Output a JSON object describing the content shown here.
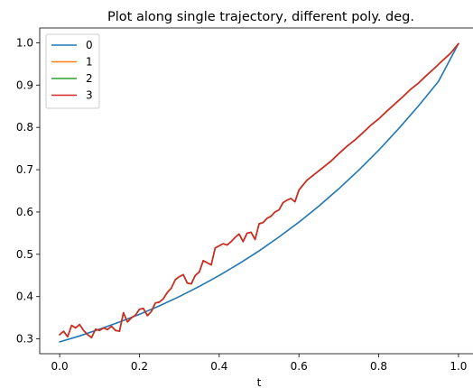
{
  "chart_data": {
    "type": "line",
    "title": "Plot along single trajectory, different poly. deg.",
    "xlabel": "t",
    "ylabel": "",
    "xlim": [
      -0.05,
      1.05
    ],
    "ylim": [
      0.265,
      1.035
    ],
    "xticks": [
      "0.0",
      "0.2",
      "0.4",
      "0.6",
      "0.8",
      "1.0"
    ],
    "yticks": [
      "0.3",
      "0.4",
      "0.5",
      "0.6",
      "0.7",
      "0.8",
      "0.9",
      "1.0"
    ],
    "grid": false,
    "legend_position": "upper-left",
    "series": [
      {
        "name": "0",
        "color": "#1f77b4",
        "x": [
          0.0,
          0.05,
          0.1,
          0.15,
          0.2,
          0.25,
          0.3,
          0.35,
          0.4,
          0.45,
          0.5,
          0.55,
          0.6,
          0.65,
          0.7,
          0.75,
          0.8,
          0.85,
          0.9,
          0.95,
          1.0
        ],
        "y": [
          0.293,
          0.307,
          0.323,
          0.34,
          0.358,
          0.378,
          0.4,
          0.424,
          0.45,
          0.478,
          0.508,
          0.541,
          0.576,
          0.614,
          0.655,
          0.699,
          0.746,
          0.797,
          0.851,
          0.909,
          0.998
        ]
      },
      {
        "name": "1",
        "color": "#ff7f0e",
        "x": [
          0.0,
          0.01,
          0.02,
          0.03,
          0.04,
          0.05,
          0.06,
          0.07,
          0.08,
          0.09,
          0.1,
          0.11,
          0.12,
          0.13,
          0.14,
          0.15,
          0.16,
          0.17,
          0.18,
          0.19,
          0.2,
          0.21,
          0.22,
          0.23,
          0.24,
          0.25,
          0.26,
          0.27,
          0.28,
          0.29,
          0.3,
          0.31,
          0.32,
          0.33,
          0.34,
          0.35,
          0.36,
          0.37,
          0.38,
          0.39,
          0.4,
          0.41,
          0.42,
          0.43,
          0.44,
          0.45,
          0.46,
          0.47,
          0.48,
          0.49,
          0.5,
          0.51,
          0.52,
          0.53,
          0.54,
          0.55,
          0.56,
          0.57,
          0.58,
          0.59,
          0.6,
          0.62,
          0.64,
          0.66,
          0.68,
          0.7,
          0.72,
          0.74,
          0.76,
          0.78,
          0.8,
          0.82,
          0.84,
          0.86,
          0.88,
          0.9,
          0.92,
          0.94,
          0.96,
          0.98,
          1.0
        ],
        "y": [
          0.31,
          0.318,
          0.305,
          0.332,
          0.326,
          0.334,
          0.32,
          0.31,
          0.303,
          0.323,
          0.32,
          0.326,
          0.322,
          0.33,
          0.32,
          0.318,
          0.362,
          0.34,
          0.35,
          0.356,
          0.37,
          0.372,
          0.355,
          0.365,
          0.385,
          0.387,
          0.395,
          0.41,
          0.42,
          0.44,
          0.447,
          0.452,
          0.432,
          0.43,
          0.45,
          0.458,
          0.485,
          0.48,
          0.475,
          0.515,
          0.52,
          0.525,
          0.522,
          0.53,
          0.54,
          0.548,
          0.53,
          0.55,
          0.552,
          0.535,
          0.572,
          0.575,
          0.585,
          0.59,
          0.6,
          0.605,
          0.622,
          0.628,
          0.632,
          0.624,
          0.652,
          0.675,
          0.69,
          0.705,
          0.72,
          0.738,
          0.755,
          0.77,
          0.787,
          0.805,
          0.82,
          0.838,
          0.855,
          0.872,
          0.89,
          0.905,
          0.923,
          0.94,
          0.958,
          0.975,
          0.998
        ]
      },
      {
        "name": "2",
        "color": "#2ca02c",
        "x": [
          0.0,
          0.01,
          0.02,
          0.03,
          0.04,
          0.05,
          0.06,
          0.07,
          0.08,
          0.09,
          0.1,
          0.11,
          0.12,
          0.13,
          0.14,
          0.15,
          0.16,
          0.17,
          0.18,
          0.19,
          0.2,
          0.21,
          0.22,
          0.23,
          0.24,
          0.25,
          0.26,
          0.27,
          0.28,
          0.29,
          0.3,
          0.31,
          0.32,
          0.33,
          0.34,
          0.35,
          0.36,
          0.37,
          0.38,
          0.39,
          0.4,
          0.41,
          0.42,
          0.43,
          0.44,
          0.45,
          0.46,
          0.47,
          0.48,
          0.49,
          0.5,
          0.51,
          0.52,
          0.53,
          0.54,
          0.55,
          0.56,
          0.57,
          0.58,
          0.59,
          0.6,
          0.62,
          0.64,
          0.66,
          0.68,
          0.7,
          0.72,
          0.74,
          0.76,
          0.78,
          0.8,
          0.82,
          0.84,
          0.86,
          0.88,
          0.9,
          0.92,
          0.94,
          0.96,
          0.98,
          1.0
        ],
        "y": [
          0.31,
          0.318,
          0.305,
          0.332,
          0.326,
          0.334,
          0.32,
          0.31,
          0.303,
          0.323,
          0.32,
          0.326,
          0.322,
          0.33,
          0.32,
          0.318,
          0.362,
          0.34,
          0.35,
          0.356,
          0.37,
          0.372,
          0.355,
          0.365,
          0.385,
          0.387,
          0.395,
          0.41,
          0.42,
          0.44,
          0.447,
          0.452,
          0.432,
          0.43,
          0.45,
          0.458,
          0.485,
          0.48,
          0.475,
          0.515,
          0.52,
          0.525,
          0.522,
          0.53,
          0.54,
          0.548,
          0.53,
          0.55,
          0.552,
          0.535,
          0.572,
          0.575,
          0.585,
          0.59,
          0.6,
          0.605,
          0.622,
          0.628,
          0.632,
          0.624,
          0.652,
          0.675,
          0.69,
          0.705,
          0.72,
          0.738,
          0.755,
          0.77,
          0.787,
          0.805,
          0.82,
          0.838,
          0.855,
          0.872,
          0.89,
          0.905,
          0.923,
          0.94,
          0.958,
          0.975,
          0.998
        ]
      },
      {
        "name": "3",
        "color": "#d62728",
        "x": [
          0.0,
          0.01,
          0.02,
          0.03,
          0.04,
          0.05,
          0.06,
          0.07,
          0.08,
          0.09,
          0.1,
          0.11,
          0.12,
          0.13,
          0.14,
          0.15,
          0.16,
          0.17,
          0.18,
          0.19,
          0.2,
          0.21,
          0.22,
          0.23,
          0.24,
          0.25,
          0.26,
          0.27,
          0.28,
          0.29,
          0.3,
          0.31,
          0.32,
          0.33,
          0.34,
          0.35,
          0.36,
          0.37,
          0.38,
          0.39,
          0.4,
          0.41,
          0.42,
          0.43,
          0.44,
          0.45,
          0.46,
          0.47,
          0.48,
          0.49,
          0.5,
          0.51,
          0.52,
          0.53,
          0.54,
          0.55,
          0.56,
          0.57,
          0.58,
          0.59,
          0.6,
          0.62,
          0.64,
          0.66,
          0.68,
          0.7,
          0.72,
          0.74,
          0.76,
          0.78,
          0.8,
          0.82,
          0.84,
          0.86,
          0.88,
          0.9,
          0.92,
          0.94,
          0.96,
          0.98,
          1.0
        ],
        "y": [
          0.31,
          0.318,
          0.305,
          0.332,
          0.326,
          0.334,
          0.32,
          0.31,
          0.303,
          0.323,
          0.32,
          0.326,
          0.322,
          0.33,
          0.32,
          0.318,
          0.362,
          0.34,
          0.35,
          0.356,
          0.37,
          0.372,
          0.355,
          0.365,
          0.385,
          0.387,
          0.395,
          0.41,
          0.42,
          0.44,
          0.447,
          0.452,
          0.432,
          0.43,
          0.45,
          0.458,
          0.485,
          0.48,
          0.475,
          0.515,
          0.52,
          0.525,
          0.522,
          0.53,
          0.54,
          0.548,
          0.53,
          0.55,
          0.552,
          0.535,
          0.572,
          0.575,
          0.585,
          0.59,
          0.6,
          0.605,
          0.622,
          0.628,
          0.632,
          0.624,
          0.652,
          0.675,
          0.69,
          0.705,
          0.72,
          0.738,
          0.755,
          0.77,
          0.787,
          0.805,
          0.82,
          0.838,
          0.855,
          0.872,
          0.89,
          0.905,
          0.923,
          0.94,
          0.958,
          0.975,
          0.998
        ]
      }
    ]
  }
}
